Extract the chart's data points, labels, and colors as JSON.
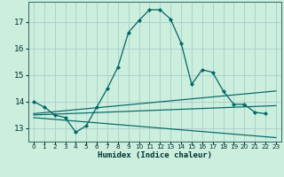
{
  "title": "",
  "xlabel": "Humidex (Indice chaleur)",
  "background_color": "#cceedd",
  "grid_color": "#aacccc",
  "line_color": "#006666",
  "xlim": [
    -0.5,
    23.5
  ],
  "ylim": [
    12.5,
    17.75
  ],
  "yticks": [
    13,
    14,
    15,
    16,
    17
  ],
  "xticks": [
    0,
    1,
    2,
    3,
    4,
    5,
    6,
    7,
    8,
    9,
    10,
    11,
    12,
    13,
    14,
    15,
    16,
    17,
    18,
    19,
    20,
    21,
    22,
    23
  ],
  "curves": [
    {
      "x": [
        0,
        1,
        2,
        3,
        4,
        5,
        6,
        7,
        8,
        9,
        10,
        11,
        12,
        13,
        14,
        15,
        16,
        17,
        18,
        19,
        20,
        21,
        22
      ],
      "y": [
        14.0,
        13.8,
        13.5,
        13.4,
        12.85,
        13.1,
        13.8,
        14.5,
        15.3,
        16.6,
        17.05,
        17.45,
        17.45,
        17.1,
        16.2,
        14.65,
        15.2,
        15.1,
        14.4,
        13.9,
        13.9,
        13.6,
        13.55
      ],
      "marker": true
    },
    {
      "x": [
        0,
        23
      ],
      "y": [
        13.55,
        14.4
      ],
      "marker": false
    },
    {
      "x": [
        0,
        23
      ],
      "y": [
        13.5,
        13.85
      ],
      "marker": false
    },
    {
      "x": [
        0,
        23
      ],
      "y": [
        13.4,
        12.65
      ],
      "marker": false
    }
  ]
}
